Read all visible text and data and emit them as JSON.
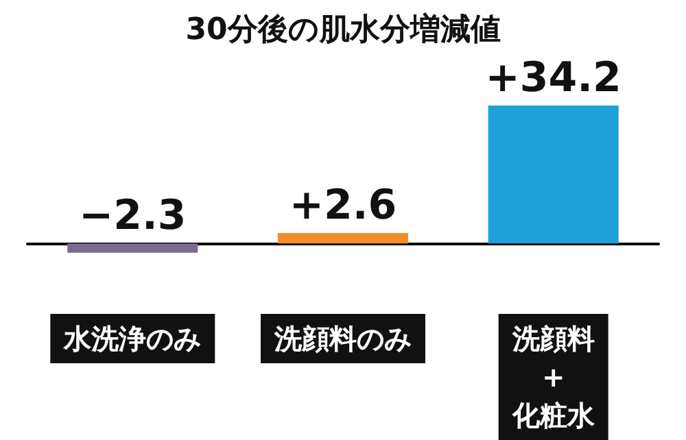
{
  "chart_data": {
    "type": "bar",
    "title": "30分後の肌水分増減値",
    "categories": [
      "水洗浄のみ",
      "洗顔料のみ",
      "洗顔料\n+\n化粧水"
    ],
    "values": [
      -2.3,
      2.6,
      34.2
    ],
    "colors": [
      "#7b6b8d",
      "#f28c28",
      "#1ea0d9"
    ],
    "value_labels": [
      "−2.3",
      "+2.6",
      "+34.2"
    ]
  }
}
